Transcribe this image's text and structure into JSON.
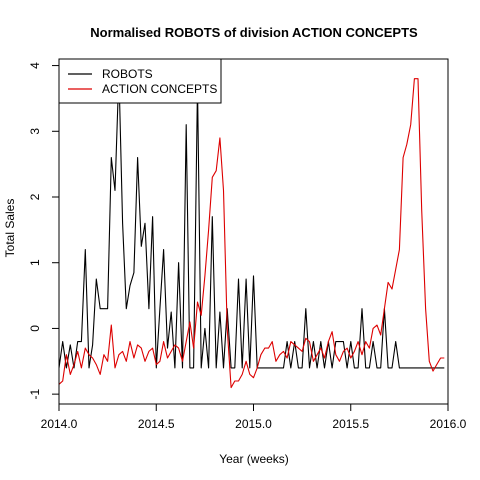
{
  "chart_data": {
    "type": "line",
    "title": "Normalised ROBOTS of division ACTION CONCEPTS",
    "xlabel": "Year (weeks)",
    "ylabel": "Total Sales",
    "xlim": [
      2014.0,
      2016.0
    ],
    "ylim": [
      -1.15,
      4.1
    ],
    "x_ticks": [
      {
        "value": 2014.0,
        "label": "2014.0"
      },
      {
        "value": 2014.5,
        "label": "2014.5"
      },
      {
        "value": 2015.0,
        "label": "2015.0"
      },
      {
        "value": 2015.5,
        "label": "2015.5"
      },
      {
        "value": 2016.0,
        "label": "2016.0"
      }
    ],
    "y_ticks": [
      {
        "value": -1,
        "label": "-1"
      },
      {
        "value": 0,
        "label": "0"
      },
      {
        "value": 1,
        "label": "1"
      },
      {
        "value": 2,
        "label": "2"
      },
      {
        "value": 3,
        "label": "3"
      },
      {
        "value": 4,
        "label": "4"
      }
    ],
    "legend": {
      "placement": "top-left",
      "entries": [
        "ROBOTS",
        "ACTION CONCEPTS"
      ]
    },
    "grid": false,
    "series": [
      {
        "name": "ROBOTS",
        "color": "#000000",
        "x": [
          2014.0,
          2014.019,
          2014.038,
          2014.058,
          2014.077,
          2014.096,
          2014.115,
          2014.135,
          2014.154,
          2014.173,
          2014.192,
          2014.212,
          2014.231,
          2014.25,
          2014.269,
          2014.288,
          2014.308,
          2014.327,
          2014.346,
          2014.365,
          2014.385,
          2014.404,
          2014.423,
          2014.442,
          2014.462,
          2014.481,
          2014.5,
          2014.519,
          2014.538,
          2014.558,
          2014.577,
          2014.596,
          2014.615,
          2014.635,
          2014.654,
          2014.673,
          2014.692,
          2014.712,
          2014.731,
          2014.75,
          2014.769,
          2014.788,
          2014.808,
          2014.827,
          2014.846,
          2014.865,
          2014.885,
          2014.904,
          2014.923,
          2014.942,
          2014.962,
          2014.981,
          2015.0,
          2015.019,
          2015.038,
          2015.058,
          2015.077,
          2015.096,
          2015.115,
          2015.135,
          2015.154,
          2015.173,
          2015.192,
          2015.212,
          2015.231,
          2015.25,
          2015.269,
          2015.288,
          2015.308,
          2015.327,
          2015.346,
          2015.365,
          2015.385,
          2015.404,
          2015.423,
          2015.442,
          2015.462,
          2015.481,
          2015.5,
          2015.519,
          2015.538,
          2015.558,
          2015.577,
          2015.596,
          2015.615,
          2015.635,
          2015.654,
          2015.673,
          2015.692,
          2015.712,
          2015.731,
          2015.75,
          2015.769,
          2015.788,
          2015.808,
          2015.827,
          2015.846,
          2015.865,
          2015.885,
          2015.904,
          2015.923,
          2015.942,
          2015.962,
          2015.981
        ],
        "values": [
          -0.6,
          -0.2,
          -0.6,
          -0.25,
          -0.6,
          -0.2,
          -0.2,
          1.2,
          -0.6,
          -0.25,
          0.75,
          0.3,
          0.3,
          0.3,
          2.6,
          2.1,
          3.9,
          1.6,
          0.3,
          0.65,
          0.85,
          2.6,
          1.25,
          1.6,
          0.3,
          1.7,
          -0.6,
          0.3,
          1.2,
          -0.3,
          0.25,
          -0.6,
          1.0,
          -0.6,
          3.1,
          -0.6,
          -0.6,
          3.7,
          -0.6,
          0.0,
          -0.6,
          1.7,
          -0.6,
          0.25,
          -0.6,
          0.3,
          -0.6,
          -0.6,
          0.75,
          -0.6,
          0.75,
          -0.6,
          0.8,
          -0.6,
          -0.6,
          -0.6,
          -0.6,
          -0.6,
          -0.6,
          -0.6,
          -0.6,
          -0.2,
          -0.6,
          -0.2,
          -0.6,
          -0.6,
          0.3,
          -0.6,
          -0.2,
          -0.6,
          -0.2,
          -0.6,
          -0.2,
          -0.6,
          -0.2,
          -0.2,
          -0.2,
          -0.6,
          -0.2,
          -0.6,
          -0.6,
          0.3,
          -0.6,
          -0.6,
          -0.2,
          -0.6,
          -0.6,
          0.3,
          -0.6,
          -0.6,
          -0.2,
          -0.6,
          -0.6,
          -0.6,
          -0.6,
          -0.6,
          -0.6,
          -0.6,
          -0.6,
          -0.6,
          -0.6,
          -0.6,
          -0.6,
          -0.6
        ]
      },
      {
        "name": "ACTION CONCEPTS",
        "color": "#dd0000",
        "x": [
          2014.0,
          2014.019,
          2014.038,
          2014.058,
          2014.077,
          2014.096,
          2014.115,
          2014.135,
          2014.154,
          2014.173,
          2014.192,
          2014.212,
          2014.231,
          2014.25,
          2014.269,
          2014.288,
          2014.308,
          2014.327,
          2014.346,
          2014.365,
          2014.385,
          2014.404,
          2014.423,
          2014.442,
          2014.462,
          2014.481,
          2014.5,
          2014.519,
          2014.538,
          2014.558,
          2014.577,
          2014.596,
          2014.615,
          2014.635,
          2014.654,
          2014.673,
          2014.692,
          2014.712,
          2014.731,
          2014.75,
          2014.769,
          2014.788,
          2014.808,
          2014.827,
          2014.846,
          2014.865,
          2014.885,
          2014.904,
          2014.923,
          2014.942,
          2014.962,
          2014.981,
          2015.0,
          2015.019,
          2015.038,
          2015.058,
          2015.077,
          2015.096,
          2015.115,
          2015.135,
          2015.154,
          2015.173,
          2015.192,
          2015.212,
          2015.231,
          2015.25,
          2015.269,
          2015.288,
          2015.308,
          2015.327,
          2015.346,
          2015.365,
          2015.385,
          2015.404,
          2015.423,
          2015.442,
          2015.462,
          2015.481,
          2015.5,
          2015.519,
          2015.538,
          2015.558,
          2015.577,
          2015.596,
          2015.615,
          2015.635,
          2015.654,
          2015.673,
          2015.692,
          2015.712,
          2015.731,
          2015.75,
          2015.769,
          2015.788,
          2015.808,
          2015.827,
          2015.846,
          2015.865,
          2015.885,
          2015.904,
          2015.923,
          2015.942,
          2015.962,
          2015.981
        ],
        "values": [
          -0.85,
          -0.8,
          -0.4,
          -0.7,
          -0.55,
          -0.35,
          -0.6,
          -0.3,
          -0.4,
          -0.45,
          -0.55,
          -0.7,
          -0.4,
          -0.5,
          0.05,
          -0.6,
          -0.4,
          -0.35,
          -0.5,
          -0.2,
          -0.45,
          -0.25,
          -0.3,
          -0.5,
          -0.35,
          -0.3,
          -0.55,
          -0.5,
          -0.2,
          -0.45,
          -0.35,
          -0.25,
          -0.3,
          -0.5,
          -0.2,
          0.1,
          -0.3,
          0.4,
          0.2,
          0.8,
          1.5,
          2.3,
          2.4,
          2.9,
          2.1,
          0.0,
          -0.9,
          -0.8,
          -0.8,
          -0.7,
          -0.5,
          -0.7,
          -0.75,
          -0.6,
          -0.4,
          -0.3,
          -0.3,
          -0.2,
          -0.5,
          -0.4,
          -0.35,
          -0.45,
          -0.2,
          -0.25,
          -0.3,
          -0.35,
          -0.15,
          -0.2,
          -0.5,
          -0.4,
          -0.3,
          -0.45,
          -0.2,
          -0.05,
          -0.4,
          -0.5,
          -0.35,
          -0.3,
          -0.45,
          -0.35,
          -0.2,
          -0.4,
          -0.2,
          -0.3,
          0.0,
          0.05,
          -0.1,
          0.3,
          0.7,
          0.6,
          0.9,
          1.2,
          2.6,
          2.8,
          3.1,
          3.8,
          3.8,
          1.8,
          0.3,
          -0.5,
          -0.65,
          -0.55,
          -0.45,
          -0.45
        ]
      }
    ]
  }
}
